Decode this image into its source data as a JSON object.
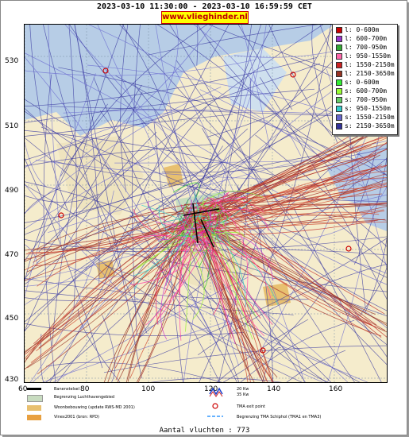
{
  "header": {
    "title": "2023-03-10 11:30:00 - 2023-03-10 16:59:59 CET",
    "url": "www.vlieghinder.nl"
  },
  "axes": {
    "y_ticks": [
      "530",
      "510",
      "490",
      "470",
      "450",
      "430"
    ],
    "x_ticks": [
      "60",
      "80",
      "100",
      "120",
      "140",
      "160"
    ]
  },
  "legend": {
    "items": [
      {
        "label": "l: 0-600m",
        "color": "#cc0000"
      },
      {
        "label": "l: 600-700m",
        "color": "#9933cc"
      },
      {
        "label": "l: 700-950m",
        "color": "#33aa33"
      },
      {
        "label": "l: 950-1550m",
        "color": "#ff66aa"
      },
      {
        "label": "l: 1550-2150m",
        "color": "#cc2222"
      },
      {
        "label": "l: 2150-3650m",
        "color": "#993322"
      },
      {
        "label": "s: 0-600m",
        "color": "#33ee33"
      },
      {
        "label": "s: 600-700m",
        "color": "#99ff33"
      },
      {
        "label": "s: 700-950m",
        "color": "#66cc66"
      },
      {
        "label": "s: 950-1550m",
        "color": "#33cccc"
      },
      {
        "label": "s: 1550-2150m",
        "color": "#6666cc"
      },
      {
        "label": "s: 2150-3650m",
        "color": "#333399"
      }
    ]
  },
  "bottom_legend": {
    "runway": "Banenstelsel",
    "airport_boundary": "Begrenzing Luchthavengebied",
    "housing": "Woonbebouwing (update RWS-MD 2001)",
    "vinex": "Vinex2001 (bron: RPD)",
    "wind_1": "20 Kw",
    "wind_2": "35 Kw",
    "tma_exit": "TMA exit point",
    "tma_boundary": "Begrenzing TMA Schiphol  (TMA1 en TMA3)"
  },
  "footer": {
    "count": "Aantal vluchten : 773"
  },
  "colors": {
    "sea": "#b7cde6",
    "land": "#f5eccc",
    "departure_red": "#c0302c",
    "arrival_blue": "#3a3aa0"
  }
}
